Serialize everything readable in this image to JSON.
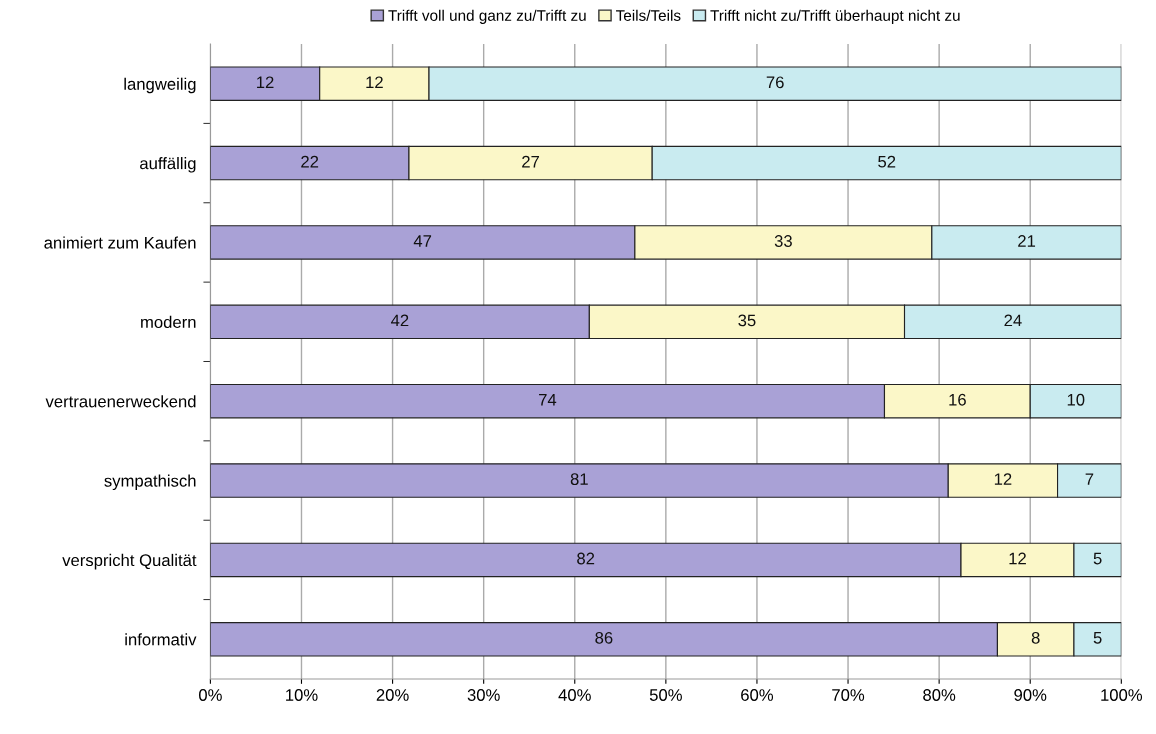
{
  "chart_data": {
    "type": "bar",
    "orientation": "horizontal",
    "stacked": true,
    "categories": [
      "langweilig",
      "auffällig",
      "animiert zum Kaufen",
      "modern",
      "vertrauenerweckend",
      "sympathisch",
      "verspricht Qualität",
      "informativ"
    ],
    "series": [
      {
        "name": "Trifft voll und ganz zu/Trifft zu",
        "color": "#a9a1d6",
        "values": [
          12,
          21.8,
          46.6,
          41.6,
          74,
          81,
          82.4,
          86.4
        ],
        "value_labels": [
          "12",
          "22",
          "47",
          "42",
          "74",
          "81",
          "82",
          "86"
        ]
      },
      {
        "name": "Teils/Teils",
        "color": "#fbf7c8",
        "values": [
          12,
          26.7,
          32.6,
          34.6,
          16,
          12,
          12.4,
          8.4
        ],
        "value_labels": [
          "12",
          "27",
          "33",
          "35",
          "16",
          "12",
          "12",
          "8"
        ]
      },
      {
        "name": "Trifft nicht zu/Trifft überhaupt nicht zu",
        "color": "#c9ebf0",
        "values": [
          76,
          51.5,
          20.8,
          23.8,
          10,
          7,
          5.2,
          5.2
        ],
        "value_labels": [
          "76",
          "52",
          "21",
          "24",
          "10",
          "7",
          "5",
          "5"
        ]
      }
    ],
    "xlim": [
      0,
      100
    ],
    "xticks": [
      {
        "value": 0,
        "label": "0%"
      },
      {
        "value": 10,
        "label": "10%"
      },
      {
        "value": 20,
        "label": "20%"
      },
      {
        "value": 30,
        "label": "30%"
      },
      {
        "value": 40,
        "label": "40%"
      },
      {
        "value": 50,
        "label": "50%"
      },
      {
        "value": 60,
        "label": "60%"
      },
      {
        "value": 70,
        "label": "70%"
      },
      {
        "value": 80,
        "label": "80%"
      },
      {
        "value": 90,
        "label": "90%"
      },
      {
        "value": 100,
        "label": "100%"
      }
    ],
    "grid": "x",
    "legend": "top"
  }
}
